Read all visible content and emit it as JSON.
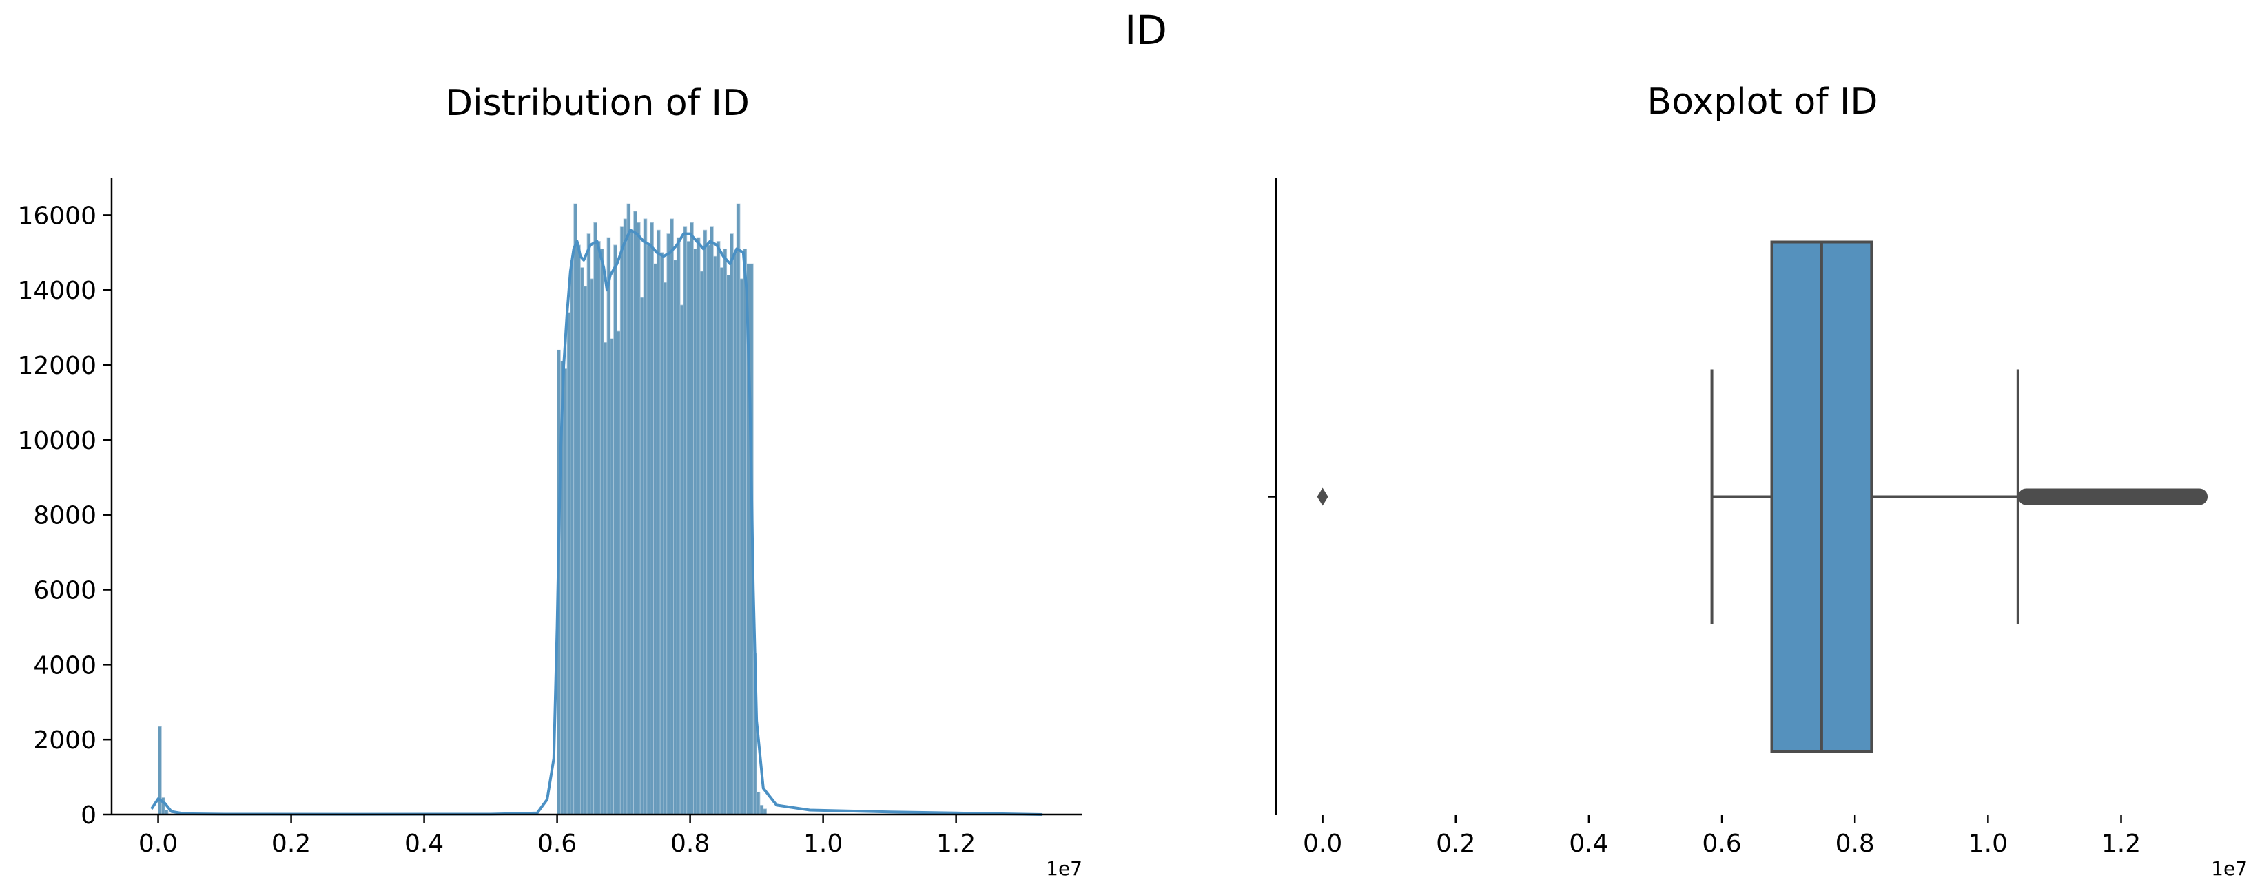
{
  "figure": {
    "title": "ID"
  },
  "chart_data": [
    {
      "type": "histogram",
      "title": "Distribution of ID",
      "xlabel": "",
      "ylabel": "",
      "x_offset_label": "1e7",
      "xlim": [
        -0.07,
        1.39
      ],
      "ylim": [
        0,
        17000
      ],
      "xticks": [
        0.0,
        0.2,
        0.4,
        0.6,
        0.8,
        1.0,
        1.2
      ],
      "xtick_labels": [
        "0.0",
        "0.2",
        "0.4",
        "0.6",
        "0.8",
        "1.0",
        "1.2"
      ],
      "yticks": [
        0,
        2000,
        4000,
        6000,
        8000,
        10000,
        12000,
        14000,
        16000
      ],
      "ytick_labels": [
        "0",
        "2000",
        "4000",
        "6000",
        "8000",
        "10000",
        "12000",
        "14000",
        "16000"
      ],
      "bar_color": "#5b92b6",
      "kde_color": "#4a90c4",
      "kde": true,
      "bins": [
        {
          "x": 0.0,
          "y": 2350
        },
        {
          "x": 0.005,
          "y": 450
        },
        {
          "x": 0.01,
          "y": 120
        },
        {
          "x": 0.6,
          "y": 12400
        },
        {
          "x": 0.605,
          "y": 12100
        },
        {
          "x": 0.61,
          "y": 11900
        },
        {
          "x": 0.615,
          "y": 13400
        },
        {
          "x": 0.62,
          "y": 14800
        },
        {
          "x": 0.625,
          "y": 16300
        },
        {
          "x": 0.63,
          "y": 15200
        },
        {
          "x": 0.635,
          "y": 14600
        },
        {
          "x": 0.64,
          "y": 14100
        },
        {
          "x": 0.645,
          "y": 15500
        },
        {
          "x": 0.65,
          "y": 14300
        },
        {
          "x": 0.655,
          "y": 15800
        },
        {
          "x": 0.66,
          "y": 15300
        },
        {
          "x": 0.665,
          "y": 15100
        },
        {
          "x": 0.67,
          "y": 12600
        },
        {
          "x": 0.675,
          "y": 15400
        },
        {
          "x": 0.68,
          "y": 12700
        },
        {
          "x": 0.685,
          "y": 15200
        },
        {
          "x": 0.69,
          "y": 12900
        },
        {
          "x": 0.695,
          "y": 15700
        },
        {
          "x": 0.7,
          "y": 15900
        },
        {
          "x": 0.705,
          "y": 16300
        },
        {
          "x": 0.71,
          "y": 15600
        },
        {
          "x": 0.715,
          "y": 16100
        },
        {
          "x": 0.72,
          "y": 15800
        },
        {
          "x": 0.725,
          "y": 13800
        },
        {
          "x": 0.73,
          "y": 15900
        },
        {
          "x": 0.735,
          "y": 15200
        },
        {
          "x": 0.74,
          "y": 15800
        },
        {
          "x": 0.745,
          "y": 14700
        },
        {
          "x": 0.75,
          "y": 15600
        },
        {
          "x": 0.755,
          "y": 15000
        },
        {
          "x": 0.76,
          "y": 14200
        },
        {
          "x": 0.765,
          "y": 15500
        },
        {
          "x": 0.77,
          "y": 15900
        },
        {
          "x": 0.775,
          "y": 14800
        },
        {
          "x": 0.78,
          "y": 15400
        },
        {
          "x": 0.785,
          "y": 13600
        },
        {
          "x": 0.79,
          "y": 15700
        },
        {
          "x": 0.795,
          "y": 15300
        },
        {
          "x": 0.8,
          "y": 15800
        },
        {
          "x": 0.805,
          "y": 15100
        },
        {
          "x": 0.81,
          "y": 15400
        },
        {
          "x": 0.815,
          "y": 14500
        },
        {
          "x": 0.82,
          "y": 15600
        },
        {
          "x": 0.825,
          "y": 15200
        },
        {
          "x": 0.83,
          "y": 15700
        },
        {
          "x": 0.835,
          "y": 14900
        },
        {
          "x": 0.84,
          "y": 15300
        },
        {
          "x": 0.845,
          "y": 14600
        },
        {
          "x": 0.85,
          "y": 15100
        },
        {
          "x": 0.855,
          "y": 14400
        },
        {
          "x": 0.86,
          "y": 15500
        },
        {
          "x": 0.865,
          "y": 15000
        },
        {
          "x": 0.87,
          "y": 16300
        },
        {
          "x": 0.875,
          "y": 14300
        },
        {
          "x": 0.88,
          "y": 15100
        },
        {
          "x": 0.885,
          "y": 14700
        },
        {
          "x": 0.89,
          "y": 14700
        },
        {
          "x": 0.895,
          "y": 4300
        },
        {
          "x": 0.9,
          "y": 600
        },
        {
          "x": 0.905,
          "y": 250
        },
        {
          "x": 0.91,
          "y": 150
        }
      ],
      "kde_points": [
        [
          -0.01,
          150
        ],
        [
          0.0,
          420
        ],
        [
          0.01,
          300
        ],
        [
          0.02,
          80
        ],
        [
          0.04,
          20
        ],
        [
          0.1,
          10
        ],
        [
          0.3,
          8
        ],
        [
          0.5,
          10
        ],
        [
          0.57,
          40
        ],
        [
          0.585,
          400
        ],
        [
          0.595,
          1500
        ],
        [
          0.6,
          5000
        ],
        [
          0.605,
          9500
        ],
        [
          0.61,
          12000
        ],
        [
          0.615,
          13400
        ],
        [
          0.62,
          14500
        ],
        [
          0.625,
          15100
        ],
        [
          0.63,
          15300
        ],
        [
          0.635,
          14900
        ],
        [
          0.64,
          14800
        ],
        [
          0.645,
          15000
        ],
        [
          0.65,
          15200
        ],
        [
          0.66,
          15300
        ],
        [
          0.67,
          14600
        ],
        [
          0.675,
          14000
        ],
        [
          0.68,
          14400
        ],
        [
          0.69,
          14700
        ],
        [
          0.7,
          15200
        ],
        [
          0.71,
          15600
        ],
        [
          0.72,
          15500
        ],
        [
          0.73,
          15300
        ],
        [
          0.74,
          15200
        ],
        [
          0.75,
          15000
        ],
        [
          0.76,
          14900
        ],
        [
          0.77,
          15000
        ],
        [
          0.78,
          15200
        ],
        [
          0.79,
          15500
        ],
        [
          0.8,
          15500
        ],
        [
          0.81,
          15300
        ],
        [
          0.82,
          15100
        ],
        [
          0.83,
          15300
        ],
        [
          0.84,
          15200
        ],
        [
          0.85,
          14900
        ],
        [
          0.86,
          14700
        ],
        [
          0.87,
          15100
        ],
        [
          0.88,
          15000
        ],
        [
          0.885,
          14000
        ],
        [
          0.89,
          11000
        ],
        [
          0.895,
          6000
        ],
        [
          0.9,
          2500
        ],
        [
          0.91,
          700
        ],
        [
          0.93,
          250
        ],
        [
          0.98,
          120
        ],
        [
          1.1,
          70
        ],
        [
          1.2,
          40
        ],
        [
          1.3,
          10
        ],
        [
          1.33,
          0
        ]
      ]
    },
    {
      "type": "boxplot",
      "title": "Boxplot of ID",
      "xlabel": "",
      "ylabel": "",
      "x_offset_label": "1e7",
      "xlim": [
        -0.07,
        1.39
      ],
      "xticks": [
        0.0,
        0.2,
        0.4,
        0.6,
        0.8,
        1.0,
        1.2
      ],
      "xtick_labels": [
        "0.0",
        "0.2",
        "0.4",
        "0.6",
        "0.8",
        "1.0",
        "1.2"
      ],
      "box_color": "#5591bd",
      "line_color": "#4d4d4d",
      "whisker_low": 0.585,
      "q1": 0.675,
      "median": 0.75,
      "q3": 0.825,
      "whisker_high": 1.045,
      "outliers_low": [
        0.0
      ],
      "outliers_high_range": [
        1.045,
        1.33
      ]
    }
  ]
}
